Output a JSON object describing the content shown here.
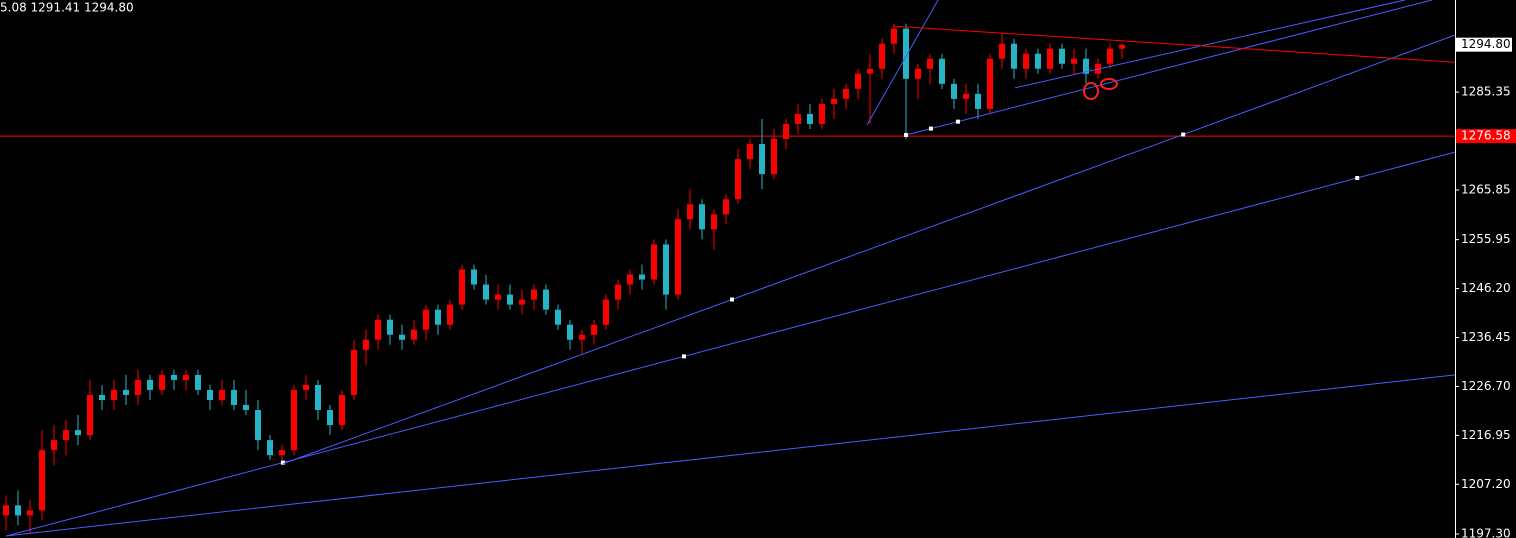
{
  "chart_data": {
    "type": "candlestick",
    "header": "5.08 1291.41 1294.80",
    "up_color": "#ff0000",
    "down_color": "#26b4c4",
    "open": [
      1201,
      1203,
      1201,
      1202,
      1214,
      1216,
      1218,
      1217,
      1225,
      1224,
      1226,
      1225,
      1228,
      1226,
      1229,
      1228,
      1229,
      1226,
      1224,
      1226,
      1223,
      1222,
      1216,
      1213,
      1214,
      1226,
      1227,
      1222,
      1219,
      1225,
      1234,
      1236,
      1240,
      1237,
      1236,
      1238,
      1242,
      1239,
      1243,
      1250,
      1247,
      1244,
      1245,
      1243,
      1244,
      1246,
      1242,
      1239,
      1236,
      1237,
      1239,
      1244,
      1247,
      1249,
      1248,
      1255,
      1245,
      1260,
      1263,
      1258,
      1261,
      1264,
      1272,
      1275,
      1269,
      1276,
      1279,
      1281,
      1279,
      1283,
      1284,
      1286,
      1289,
      1290,
      1295,
      1298,
      1288,
      1290,
      1292,
      1287,
      1284,
      1285,
      1282,
      1292,
      1295,
      1290,
      1293,
      1290,
      1294,
      1291,
      1292,
      1289,
      1291,
      1294
    ],
    "high": [
      1205,
      1206,
      1204,
      1218,
      1219,
      1220,
      1221,
      1228,
      1227,
      1228,
      1229,
      1230,
      1229,
      1230,
      1230,
      1230,
      1230,
      1227,
      1228,
      1228,
      1226,
      1224,
      1217,
      1215,
      1227,
      1229,
      1228,
      1223,
      1226,
      1236,
      1238,
      1241,
      1241,
      1239,
      1240,
      1243,
      1243,
      1244,
      1251,
      1251,
      1249,
      1247,
      1247,
      1246,
      1247,
      1247,
      1243,
      1240,
      1238,
      1240,
      1245,
      1248,
      1250,
      1251,
      1256,
      1256,
      1262,
      1266,
      1264,
      1262,
      1265,
      1274,
      1276,
      1280,
      1278,
      1280,
      1283,
      1283,
      1284,
      1286,
      1287,
      1290,
      1293,
      1296,
      1299,
      1299,
      1291,
      1293,
      1293,
      1288,
      1287,
      1287,
      1293,
      1297,
      1296,
      1294,
      1294,
      1295,
      1295,
      1294,
      1294,
      1292,
      1295,
      1295
    ],
    "low": [
      1198,
      1199,
      1197.5,
      1200,
      1211,
      1213,
      1215,
      1216,
      1222,
      1222,
      1223,
      1223,
      1224,
      1225,
      1226,
      1226,
      1225,
      1222,
      1223,
      1222,
      1221,
      1214,
      1212,
      1211,
      1213,
      1224,
      1220,
      1217,
      1218,
      1224,
      1231,
      1234,
      1235,
      1234,
      1235,
      1236,
      1237,
      1238,
      1242,
      1246,
      1243,
      1242,
      1242,
      1241,
      1242,
      1241,
      1238,
      1234,
      1233,
      1235,
      1238,
      1242,
      1245,
      1246,
      1247,
      1242,
      1244,
      1258,
      1256,
      1254,
      1259,
      1263,
      1270,
      1266,
      1268,
      1274,
      1277,
      1278,
      1278,
      1280,
      1282,
      1284,
      1279,
      1288,
      1293,
      1276,
      1284,
      1287,
      1286,
      1282,
      1281,
      1280,
      1281,
      1290,
      1288,
      1288,
      1289,
      1289,
      1290,
      1289,
      1287,
      1288,
      1290,
      1292
    ],
    "close": [
      1203,
      1201,
      1202,
      1214,
      1216,
      1218,
      1217,
      1225,
      1224,
      1226,
      1225,
      1228,
      1226,
      1229,
      1228,
      1229,
      1226,
      1224,
      1226,
      1223,
      1222,
      1216,
      1213,
      1214,
      1226,
      1227,
      1222,
      1219,
      1225,
      1234,
      1236,
      1240,
      1237,
      1236,
      1238,
      1242,
      1239,
      1243,
      1250,
      1247,
      1244,
      1245,
      1243,
      1244,
      1246,
      1242,
      1239,
      1236,
      1237,
      1239,
      1244,
      1247,
      1249,
      1248,
      1255,
      1245,
      1260,
      1263,
      1258,
      1261,
      1264,
      1272,
      1275,
      1269,
      1276,
      1279,
      1281,
      1279,
      1283,
      1284,
      1286,
      1289,
      1290,
      1295,
      1298,
      1288,
      1290,
      1292,
      1287,
      1284,
      1285,
      1282,
      1292,
      1295,
      1290,
      1293,
      1290,
      1294,
      1291,
      1292,
      1289,
      1291,
      1294,
      1294.8
    ],
    "ylim": [
      1196.5,
      1303.7
    ],
    "yticks": [
      {
        "value": 1197.3,
        "label": "1197.30"
      },
      {
        "value": 1207.2,
        "label": "1207.20"
      },
      {
        "value": 1216.95,
        "label": "1216.95"
      },
      {
        "value": 1226.7,
        "label": "1226.70"
      },
      {
        "value": 1236.45,
        "label": "1236.45"
      },
      {
        "value": 1246.2,
        "label": "1246.20"
      },
      {
        "value": 1255.95,
        "label": "1255.95"
      },
      {
        "value": 1265.85,
        "label": "1265.85"
      },
      {
        "value": 1285.35,
        "label": "1285.35"
      }
    ],
    "current_price": {
      "value": 1294.8,
      "label": "1294.80"
    },
    "hline": {
      "value": 1276.58,
      "color": "#ff0000"
    },
    "trendlines": [
      {
        "x": [
          0,
          120.75
        ],
        "y": [
          1196.9,
          1229.0
        ],
        "color": "#4a5cff",
        "markers": []
      },
      {
        "x": [
          0,
          120.75
        ],
        "y": [
          1196.9,
          1273.4
        ],
        "color": "#4a5cff",
        "markers": [
          23.08,
          56.5,
          112.6
        ]
      },
      {
        "x": [
          23.08,
          120.75
        ],
        "y": [
          1211.3,
          1296.7
        ],
        "color": "#4a5cff",
        "markers": [
          60.5,
          98.1
        ]
      },
      {
        "x": [
          71.75,
          77.67
        ],
        "y": [
          1278.8,
          1303.7
        ],
        "color": "#4a5cff",
        "markers": []
      },
      {
        "x": [
          75,
          118.83
        ],
        "y": [
          1276.8,
          1303.7
        ],
        "color": "#4a5cff",
        "markers": [
          75,
          77.08,
          79.33
        ]
      },
      {
        "x": [
          84.08,
          116.58
        ],
        "y": [
          1286.2,
          1303.7
        ],
        "color": "#4a5cff",
        "markers": []
      },
      {
        "x": [
          73.92,
          120.75
        ],
        "y": [
          1298.5,
          1291.3
        ],
        "color": "#ff0000",
        "markers": []
      }
    ]
  }
}
